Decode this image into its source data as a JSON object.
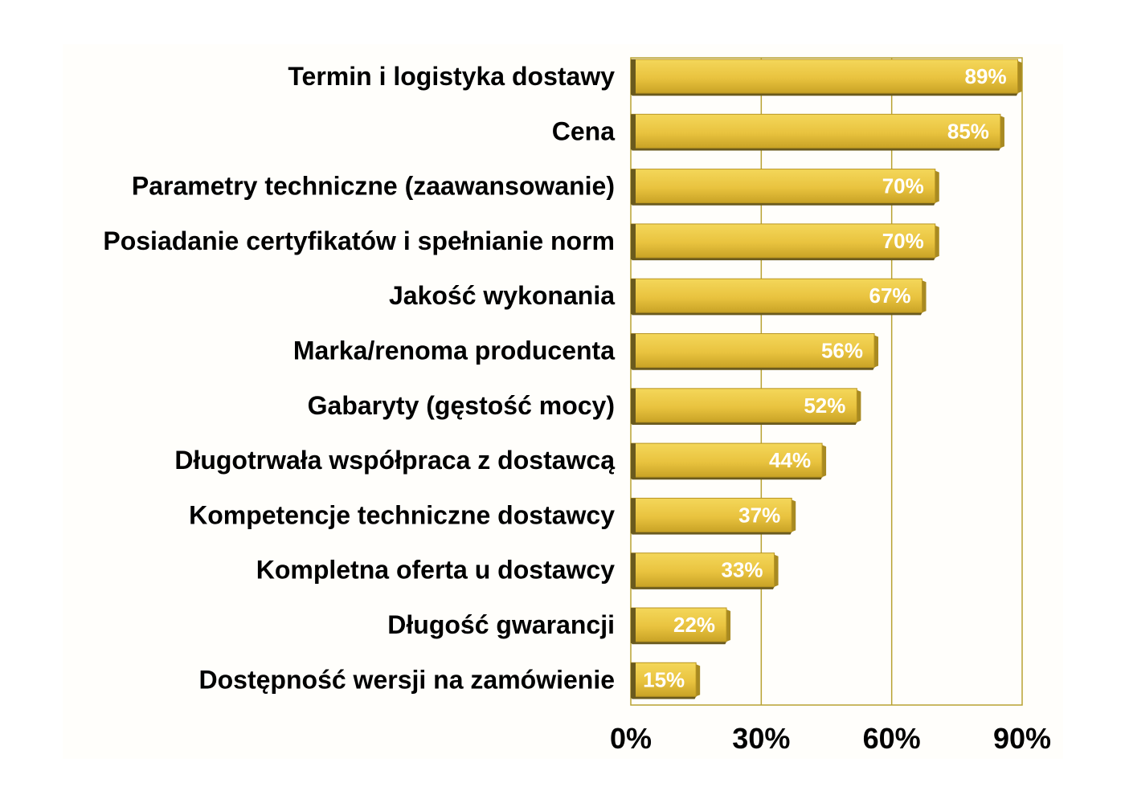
{
  "chart_data": {
    "type": "bar",
    "orientation": "horizontal",
    "categories": [
      "Termin i logistyka dostawy",
      "Cena",
      "Parametry techniczne (zaawansowanie)",
      "Posiadanie certyfikatów i spełnianie norm",
      "Jakość wykonania",
      "Marka/renoma producenta",
      "Gabaryty (gęstość mocy)",
      "Długotrwała współpraca z dostawcą",
      "Kompetencje techniczne dostawcy",
      "Kompletna oferta u dostawcy",
      "Długość gwarancji",
      "Dostępność wersji na zamówienie"
    ],
    "values": [
      89,
      85,
      70,
      70,
      67,
      56,
      52,
      44,
      37,
      33,
      22,
      15
    ],
    "value_labels": [
      "89%",
      "85%",
      "70%",
      "70%",
      "67%",
      "56%",
      "52%",
      "44%",
      "37%",
      "33%",
      "22%",
      "15%"
    ],
    "xlim": [
      0,
      90
    ],
    "xticks": [
      0,
      30,
      60,
      90
    ],
    "xtick_labels": [
      "0%",
      "30%",
      "60%",
      "90%"
    ],
    "grid": "vertical",
    "legend": "none",
    "colors": {
      "bar": "#e9c33f",
      "bar_light": "#f4d75a",
      "bar_shadow": "#6a5a1e",
      "gridline": "#b8a232",
      "plot_background": "#fffefb",
      "label": "#000000",
      "value_text": "#ffffff"
    }
  }
}
